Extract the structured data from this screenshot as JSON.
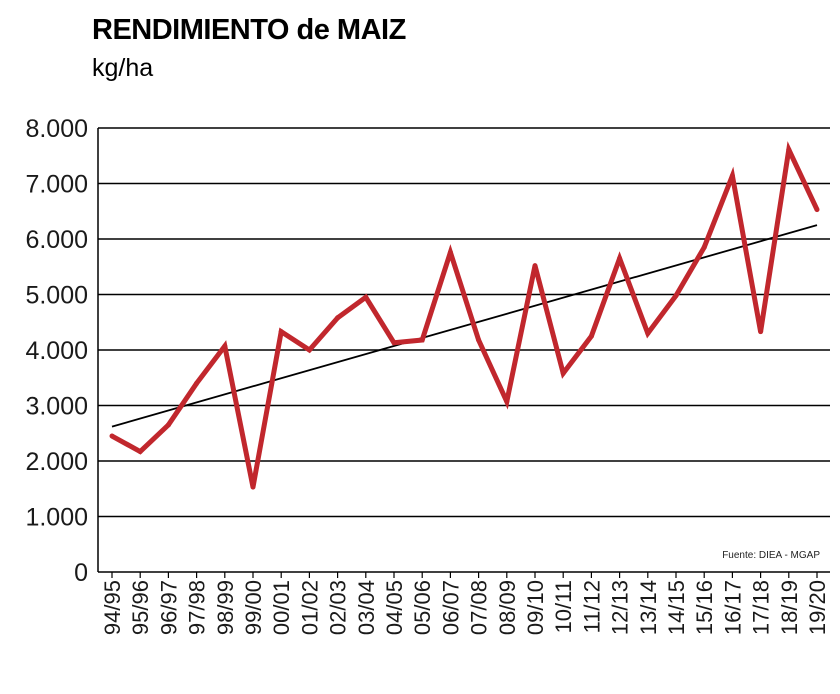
{
  "header": {
    "title": "RENDIMIENTO de MAIZ",
    "unit": "kg/ha"
  },
  "chart_data": {
    "type": "line",
    "title": "RENDIMIENTO de MAIZ",
    "ylabel": "kg/ha",
    "xlabel": "",
    "ylim": [
      0,
      8000
    ],
    "yticks": [
      0,
      1000,
      2000,
      3000,
      4000,
      5000,
      6000,
      7000,
      8000
    ],
    "ytick_labels": [
      "0",
      "1.000",
      "2.000",
      "3.000",
      "4.000",
      "5.000",
      "6.000",
      "7.000",
      "8.000"
    ],
    "grid": true,
    "categories": [
      "94/95",
      "95/96",
      "96/97",
      "97/98",
      "98/99",
      "99/00",
      "00/01",
      "01/02",
      "02/03",
      "03/04",
      "04/05",
      "05/06",
      "06/07",
      "07/08",
      "08/09",
      "09/10",
      "10/11",
      "11/12",
      "12/13",
      "13/14",
      "14/15",
      "15/16",
      "16/17",
      "17/18",
      "18/19",
      "19/20"
    ],
    "series": [
      {
        "color": "#c1272d",
        "values": [
          2450,
          2170,
          2650,
          3400,
          4070,
          1530,
          4330,
          4000,
          4580,
          4950,
          4130,
          4180,
          5760,
          4180,
          3070,
          5520,
          3580,
          4250,
          5650,
          4300,
          4980,
          5850,
          7140,
          4330,
          7610,
          6530
        ]
      }
    ],
    "trendline": {
      "color": "#000000",
      "start": 2620,
      "end": 6250
    },
    "annotation": "Fuente: DIEA - MGAP"
  }
}
